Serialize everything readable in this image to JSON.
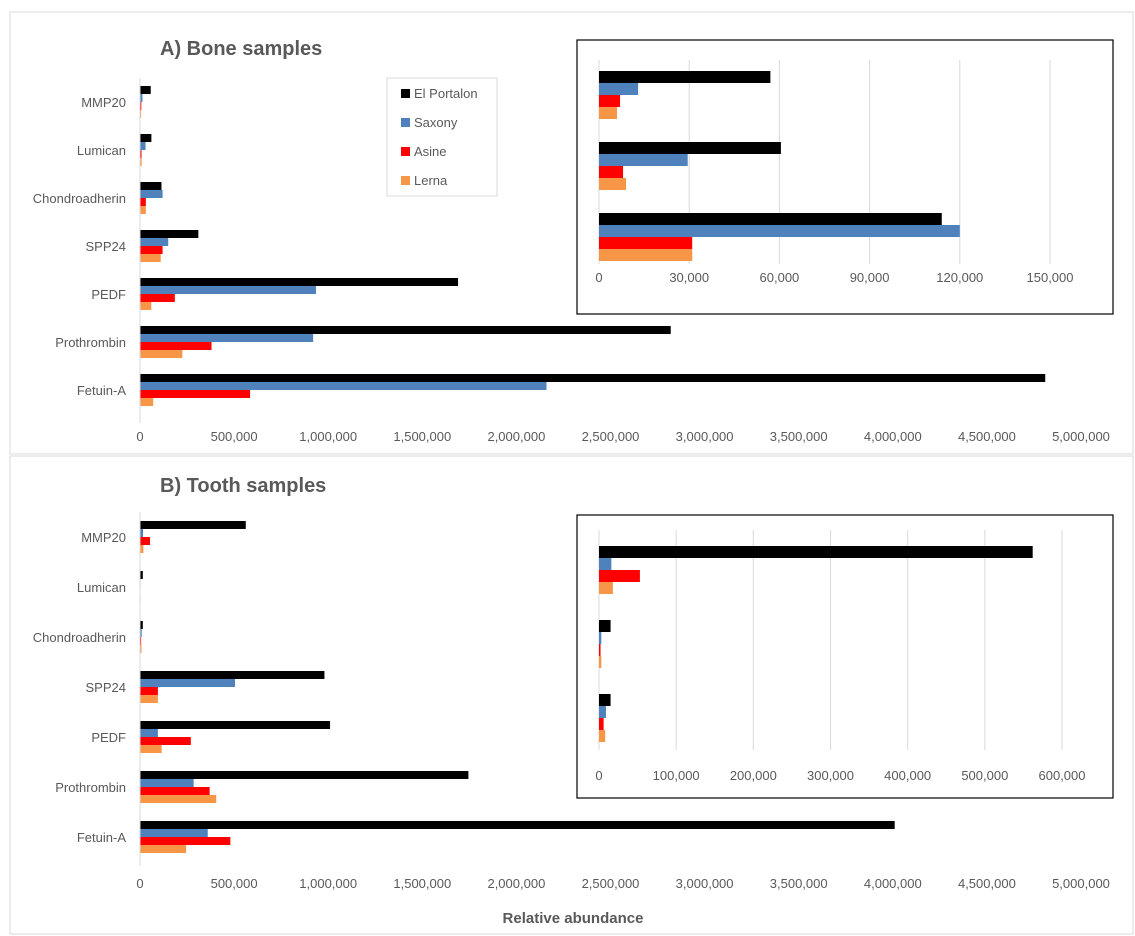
{
  "panels": {
    "a": {
      "title": "A) Bone samples"
    },
    "b": {
      "title": "B) Tooth samples"
    }
  },
  "xlabel": "Relative abundance",
  "legend": {
    "entries": [
      "El Portalon",
      "Saxony",
      "Asine",
      "Lerna"
    ],
    "colors": [
      "#000000",
      "#4f81bd",
      "#ff0000",
      "#f79646"
    ]
  },
  "chart_data": [
    {
      "type": "bar",
      "orientation": "horizontal",
      "title": "A) Bone samples",
      "xlabel": "",
      "ylabel": "",
      "categories": [
        "MMP20",
        "Lumican",
        "Chondroadherin",
        "SPP24",
        "PEDF",
        "Prothrombin",
        "Fetuin-A"
      ],
      "xlim": [
        0,
        5000000
      ],
      "xticks": [
        "0",
        "500,000",
        "1,000,000",
        "1,500,000",
        "2,000,000",
        "2,500,000",
        "3,000,000",
        "3,500,000",
        "4,000,000",
        "4,500,000",
        "5,000,000"
      ],
      "legend_position": "top-center",
      "series": [
        {
          "name": "El Portalon",
          "color": "#000000",
          "values": [
            57000,
            60500,
            114000,
            310000,
            1690000,
            2820000,
            4810000
          ]
        },
        {
          "name": "Saxony",
          "color": "#4f81bd",
          "values": [
            13000,
            29500,
            120000,
            150000,
            935000,
            920000,
            2160000
          ]
        },
        {
          "name": "Asine",
          "color": "#ff0000",
          "values": [
            7000,
            8000,
            31000,
            120000,
            185000,
            380000,
            585000
          ]
        },
        {
          "name": "Lerna",
          "color": "#f79646",
          "values": [
            6000,
            9000,
            31000,
            110000,
            60000,
            225000,
            70000
          ]
        }
      ],
      "inset": {
        "categories": [
          "MMP20",
          "Lumican",
          "Chondroadherin"
        ],
        "xlim": [
          0,
          150000
        ],
        "xticks": [
          "0",
          "30,000",
          "60,000",
          "90,000",
          "120,000",
          "150,000"
        ],
        "grid": true
      }
    },
    {
      "type": "bar",
      "orientation": "horizontal",
      "title": "B) Tooth samples",
      "xlabel": "Relative abundance",
      "ylabel": "",
      "categories": [
        "MMP20",
        "Lumican",
        "Chondroadherin",
        "SPP24",
        "PEDF",
        "Prothrombin",
        "Fetuin-A"
      ],
      "xlim": [
        0,
        5000000
      ],
      "xticks": [
        "0",
        "500,000",
        "1,000,000",
        "1,500,000",
        "2,000,000",
        "2,500,000",
        "3,000,000",
        "3,500,000",
        "4,000,000",
        "4,500,000",
        "5,000,000"
      ],
      "series": [
        {
          "name": "El Portalon",
          "color": "#000000",
          "values": [
            562000,
            15000,
            15000,
            980000,
            1010000,
            1745000,
            4010000
          ]
        },
        {
          "name": "Saxony",
          "color": "#4f81bd",
          "values": [
            16000,
            3000,
            9000,
            505000,
            95000,
            285000,
            360000
          ]
        },
        {
          "name": "Asine",
          "color": "#ff0000",
          "values": [
            53000,
            2000,
            6000,
            95000,
            270000,
            370000,
            480000
          ]
        },
        {
          "name": "Lerna",
          "color": "#f79646",
          "values": [
            18000,
            3000,
            8000,
            95000,
            115000,
            405000,
            245000
          ]
        }
      ],
      "inset": {
        "categories": [
          "MMP20",
          "Lumican",
          "Chondroadherin"
        ],
        "xlim": [
          0,
          600000
        ],
        "xticks": [
          "0",
          "100,000",
          "200,000",
          "300,000",
          "400,000",
          "500,000",
          "600,000"
        ],
        "grid": true
      }
    }
  ]
}
